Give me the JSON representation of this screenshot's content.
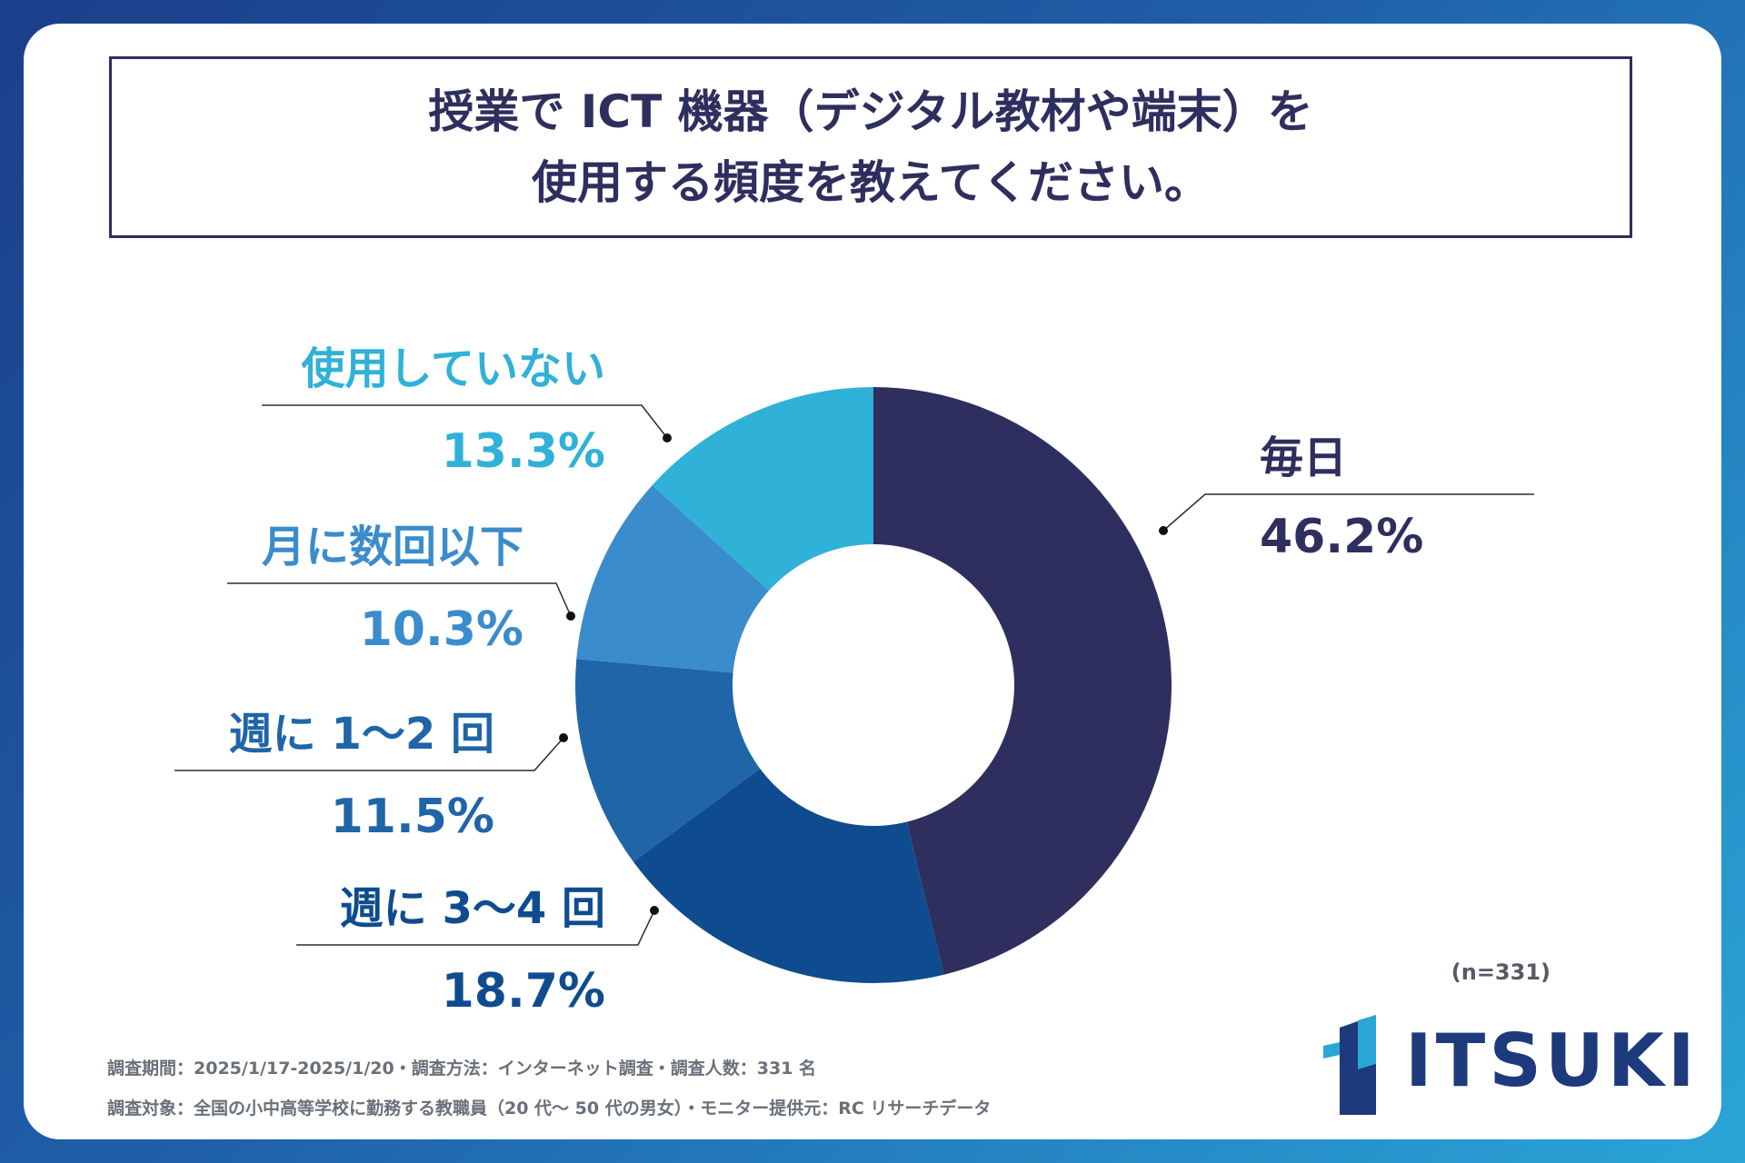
{
  "title": {
    "line1": "授業で ICT 機器（デジタル教材や端末）を",
    "line2": "使用する頻度を教えてください。"
  },
  "chart_data": {
    "type": "pie",
    "donut": true,
    "sample_note": "(n=331)",
    "slices": [
      {
        "label": "毎日",
        "value": 46.2,
        "value_label": "46.2%",
        "color": "#2e2f5e"
      },
      {
        "label": "週に 3〜4 回",
        "value": 18.7,
        "value_label": "18.7%",
        "color": "#0f4c8f"
      },
      {
        "label": "週に 1〜2 回",
        "value": 11.5,
        "value_label": "11.5%",
        "color": "#1f65a8"
      },
      {
        "label": "月に数回以下",
        "value": 10.3,
        "value_label": "10.3%",
        "color": "#3a8ccc"
      },
      {
        "label": "使用していない",
        "value": 13.3,
        "value_label": "13.3%",
        "color": "#30b1d8"
      }
    ]
  },
  "footer": {
    "line1": "調査期間：2025/1/17-2025/1/20・調査方法：インターネット調査・調査人数：331 名",
    "line2": "調査対象：全国の小中高等学校に勤務する教職員（20 代〜 50 代の男女）・モニター提供元：RC リサーチデータ"
  },
  "logo": {
    "text": "ITSUKI",
    "color": "#1d3a7c"
  }
}
